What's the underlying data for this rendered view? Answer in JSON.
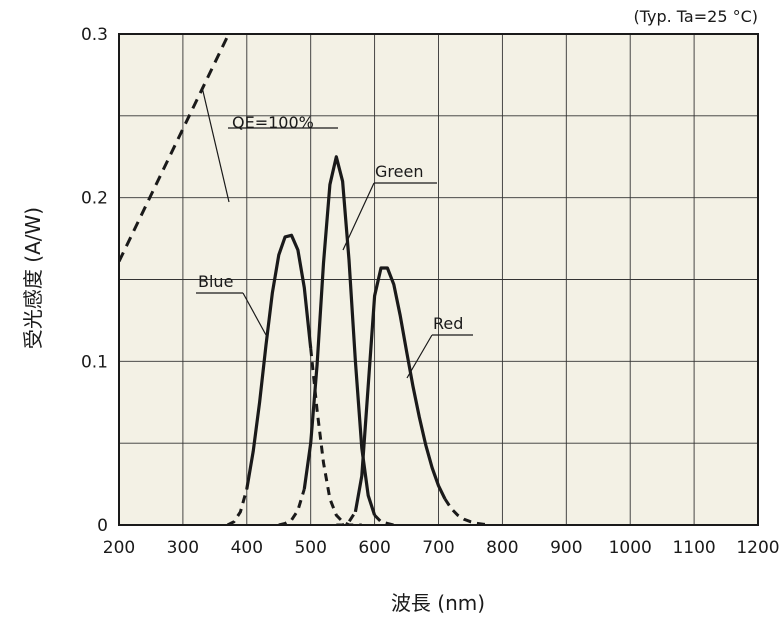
{
  "chart_data": {
    "type": "line",
    "note": "(Typ. Ta=25 °C)",
    "xlabel": "波長 (nm)",
    "ylabel": "受光感度 (A/W)",
    "xlim": [
      200,
      1200
    ],
    "ylim": [
      0,
      0.3
    ],
    "x_ticks": [
      "200",
      "300",
      "400",
      "500",
      "600",
      "700",
      "800",
      "900",
      "1000",
      "1100",
      "1200"
    ],
    "y_ticks": [
      "0",
      "0.1",
      "0.2",
      "0.3"
    ],
    "grid": true,
    "colors": {
      "background": "#f3f1e5",
      "grid": "#333333",
      "line": "#1a1a1a"
    },
    "series": [
      {
        "name": "QE=100%",
        "style": "dashed",
        "x": [
          200,
          300,
          400,
          420
        ],
        "y": [
          0.161,
          0.242,
          0.323,
          0.339
        ]
      },
      {
        "name": "Blue",
        "solid_range": [
          400,
          500
        ],
        "x": [
          370,
          380,
          390,
          400,
          410,
          420,
          430,
          440,
          450,
          460,
          470,
          480,
          490,
          500,
          510,
          520,
          530,
          540,
          550,
          560,
          580
        ],
        "y": [
          0,
          0.002,
          0.008,
          0.022,
          0.045,
          0.075,
          0.11,
          0.142,
          0.165,
          0.176,
          0.177,
          0.168,
          0.145,
          0.108,
          0.07,
          0.038,
          0.016,
          0.006,
          0.002,
          0,
          0
        ]
      },
      {
        "name": "Green",
        "solid_range": [
          490,
          600
        ],
        "x": [
          450,
          460,
          470,
          480,
          490,
          500,
          510,
          520,
          530,
          540,
          550,
          560,
          570,
          580,
          590,
          600,
          610,
          620,
          630
        ],
        "y": [
          0,
          0.001,
          0.003,
          0.009,
          0.022,
          0.05,
          0.098,
          0.16,
          0.208,
          0.225,
          0.21,
          0.162,
          0.1,
          0.047,
          0.018,
          0.006,
          0.002,
          0.001,
          0
        ]
      },
      {
        "name": "Red",
        "solid_range": [
          570,
          710
        ],
        "x": [
          540,
          550,
          560,
          570,
          580,
          590,
          600,
          610,
          620,
          630,
          640,
          650,
          660,
          670,
          680,
          690,
          700,
          710,
          720,
          730,
          740,
          750,
          760,
          770,
          780
        ],
        "y": [
          0,
          0,
          0.002,
          0.008,
          0.03,
          0.085,
          0.14,
          0.157,
          0.157,
          0.147,
          0.128,
          0.106,
          0.085,
          0.066,
          0.049,
          0.035,
          0.024,
          0.016,
          0.01,
          0.006,
          0.0035,
          0.002,
          0.001,
          0.0005,
          0
        ]
      }
    ],
    "annotations": [
      {
        "text": "QE=100%",
        "x": 330,
        "y": 0.27
      },
      {
        "text": "Green",
        "x": 555,
        "y": 0.195
      },
      {
        "text": "Blue",
        "x": 465,
        "y": 0.115
      },
      {
        "text": "Red",
        "x": 650,
        "y": 0.095
      }
    ]
  }
}
